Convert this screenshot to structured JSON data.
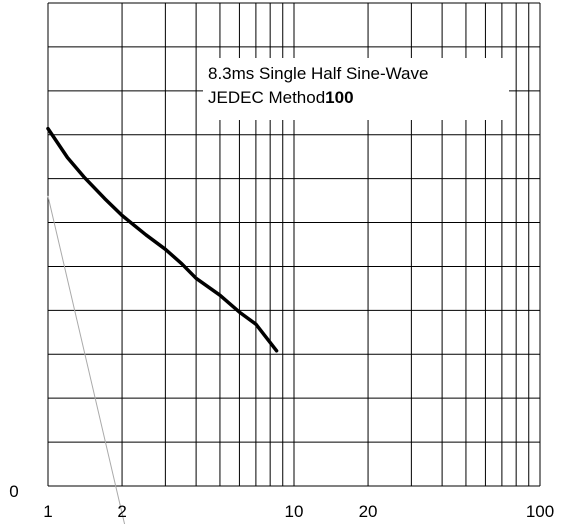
{
  "chart_data": {
    "type": "line",
    "title": "",
    "xlabel": "",
    "ylabel": "",
    "x_scale": "log",
    "xlim": [
      1,
      100
    ],
    "ylim": [
      0,
      10
    ],
    "x_ticks": [
      {
        "value": 1,
        "label": "1"
      },
      {
        "value": 2,
        "label": "2"
      },
      {
        "value": 10,
        "label": "10"
      },
      {
        "value": 20,
        "label": "20"
      },
      {
        "value": 100,
        "label": "100"
      }
    ],
    "y_ticks": [
      {
        "value": 0,
        "label": "0"
      }
    ],
    "grid": true,
    "annotation": {
      "line1": "8.3ms Single Half Sine-Wave",
      "line2_prefix": "JEDEC Method",
      "line2_bold": "100"
    },
    "series": [
      {
        "color": "#000000",
        "x": [
          1,
          1.2,
          1.4,
          1.7,
          2,
          2.5,
          3,
          3.5,
          4,
          5,
          6,
          7,
          8.5
        ],
        "y": [
          7.4,
          6.8,
          6.4,
          5.95,
          5.6,
          5.2,
          4.9,
          4.6,
          4.3,
          3.95,
          3.6,
          3.35,
          2.8
        ]
      },
      {
        "color": "#aaaaaa",
        "x": [
          1,
          2.05
        ],
        "y": [
          6.0,
          -0.8
        ]
      }
    ]
  }
}
